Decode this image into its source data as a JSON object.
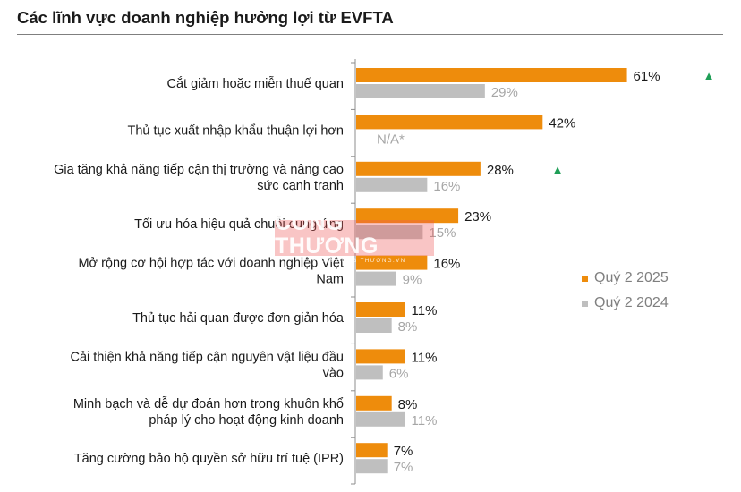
{
  "title": "Các lĩnh vực doanh nghiệp hưởng lợi từ EVFTA",
  "chart_data": {
    "type": "bar",
    "orientation": "horizontal",
    "title": "Các lĩnh vực doanh nghiệp hưởng lợi từ EVFTA",
    "categories": [
      [
        "Cắt giảm hoặc miễn thuế quan"
      ],
      [
        "Thủ tục xuất nhập khẩu thuận lợi hơn"
      ],
      [
        "Gia tăng khả năng tiếp cận thị trường và nâng cao",
        "sức cạnh tranh"
      ],
      [
        "Tối ưu hóa hiệu quả chuỗi cung ứng"
      ],
      [
        "Mở rộng cơ hội hợp tác với doanh nghiệp Việt",
        "Nam"
      ],
      [
        "Thủ tục hải quan được đơn giản hóa"
      ],
      [
        "Cải thiện khả năng tiếp cận nguyên vật liệu đầu",
        "vào"
      ],
      [
        "Minh bạch và dễ dự đoán hơn trong khuôn khổ",
        "pháp lý cho hoạt động kinh doanh"
      ],
      [
        "Tăng cường bảo hộ quyền sở hữu trí tuệ (IPR)"
      ]
    ],
    "series": [
      {
        "name": "Quý 2 2025",
        "color": "#ee8c0c",
        "label_color": "#1a1a1a",
        "values": [
          61,
          42,
          28,
          23,
          16,
          11,
          11,
          8,
          7
        ],
        "labels": [
          "61%",
          "42%",
          "28%",
          "23%",
          "16%",
          "11%",
          "11%",
          "8%",
          "7%"
        ]
      },
      {
        "name": "Quý 2 2024",
        "color": "#bfbfbf",
        "label_color": "#a6a6a6",
        "values": [
          29,
          null,
          16,
          15,
          9,
          8,
          6,
          11,
          7
        ],
        "labels": [
          "29%",
          "N/A*",
          "16%",
          "15%",
          "9%",
          "8%",
          "6%",
          "11%",
          "7%"
        ]
      }
    ],
    "markers": [
      {
        "category_index": 0,
        "symbol": "▲",
        "color": "#1f9e57"
      },
      {
        "category_index": 2,
        "symbol": "▲",
        "color": "#1f9e57"
      }
    ],
    "legend_position": "right"
  },
  "legend": [
    {
      "label": "Quý 2 2025",
      "color": "#ee8c0c"
    },
    {
      "label": "Quý 2 2024",
      "color": "#bfbfbf"
    }
  ],
  "watermark": {
    "main": "CÔNG THƯƠNG",
    "sub": "TẠP CHÍ CÔNG THƯƠNG.VN"
  }
}
